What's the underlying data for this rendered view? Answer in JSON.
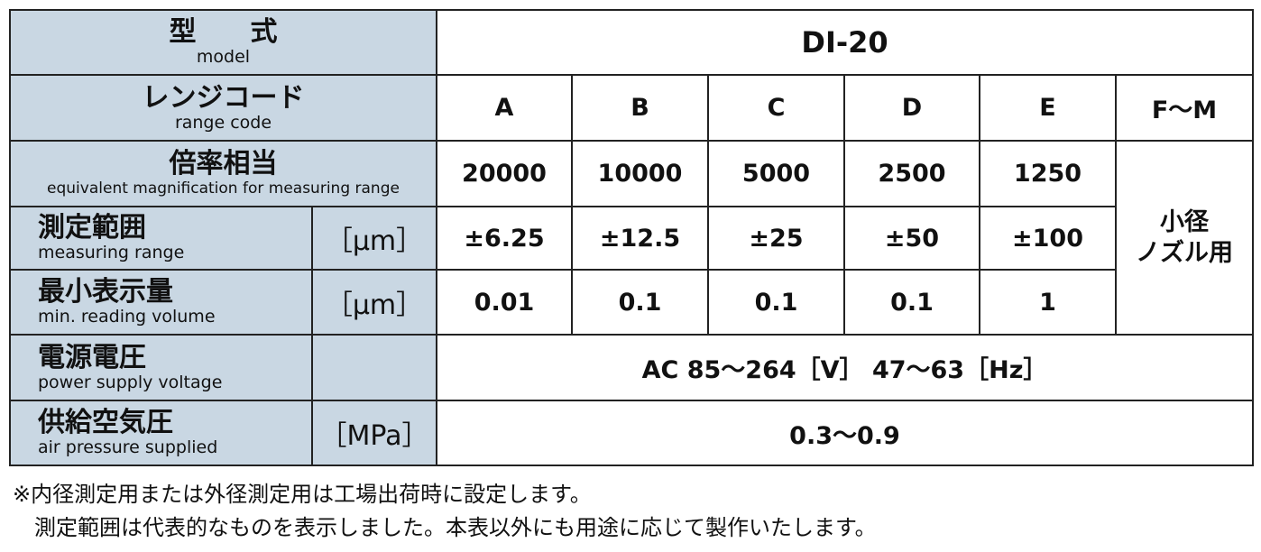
{
  "header": {
    "label_ja": "型　　式",
    "label_en": "model",
    "value": "DI-20"
  },
  "range_code": {
    "label_ja": "レンジコード",
    "label_en": "range code",
    "values": [
      "A",
      "B",
      "C",
      "D",
      "E",
      "F〜M"
    ]
  },
  "magnification": {
    "label_ja": "倍率相当",
    "label_en": "equivalent magnification for measuring range",
    "values": [
      "20000",
      "10000",
      "5000",
      "2500",
      "1250"
    ]
  },
  "fm_note": "小径\nノズル用",
  "measuring_range": {
    "label_ja": "測定範囲",
    "label_en": "measuring range",
    "unit": "［μm］",
    "values": [
      "±6.25",
      "±12.5",
      "±25",
      "±50",
      "±100"
    ]
  },
  "min_reading": {
    "label_ja": "最小表示量",
    "label_en": "min. reading volume",
    "unit": "［μm］",
    "values": [
      "0.01",
      "0.1",
      "0.1",
      "0.1",
      "1"
    ]
  },
  "power_supply": {
    "label_ja": "電源電圧",
    "label_en": "power supply voltage",
    "value": "AC 85〜264［V］ 47〜63［Hz］"
  },
  "air_pressure": {
    "label_ja": "供給空気圧",
    "label_en": "air pressure supplied",
    "unit": "［MPa］",
    "value": "0.3〜0.9"
  },
  "notes": [
    "※内径測定用または外径測定用は工場出荷時に設定します。",
    "　測定範囲は代表的なものを表示しました。本表以外にも用途に応じて製作いたします。"
  ]
}
